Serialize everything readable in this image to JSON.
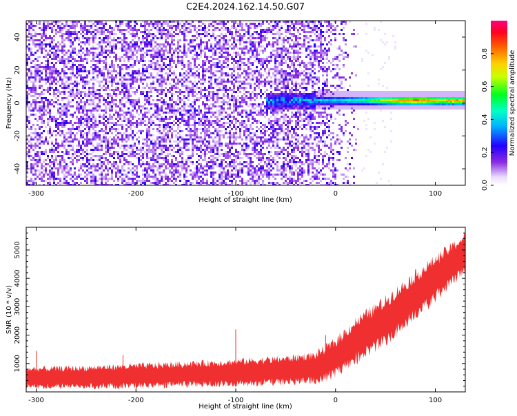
{
  "title": "C2E4.2024.162.14.50.G07",
  "colorbar": {
    "label": "Normalized spectral amplitude",
    "ticks": [
      "0.0",
      "0.2",
      "0.4",
      "0.6",
      "0.8"
    ],
    "tick_values": [
      0.0,
      0.2,
      0.4,
      0.6,
      0.8
    ],
    "range": [
      0,
      1
    ]
  },
  "chart_data": [
    {
      "type": "heatmap",
      "title": "",
      "xlabel": "Height of straight line (km)",
      "ylabel": "Frequency (Hz)",
      "xlim": [
        -310,
        130
      ],
      "ylim": [
        -50,
        50
      ],
      "xticks": [
        -300,
        -200,
        -100,
        0,
        100
      ],
      "xtick_labels": [
        "-300",
        "-200",
        "-100",
        "0",
        "100"
      ],
      "yticks": [
        -40,
        -20,
        0,
        20,
        40
      ],
      "ytick_labels": [
        "-40",
        "-20",
        "0",
        "20",
        "40"
      ],
      "colormap": "rainbow (purple-blue-cyan-green-yellow-orange-red-magenta)",
      "features": {
        "noise_floor_x_range": [
          -310,
          -20
        ],
        "noise_floor_amplitude": 0.15,
        "signal_line_frequency_hz": 1.5,
        "signal_line_x_range": [
          -70,
          130
        ],
        "signal_peak_x": 80,
        "signal_peak_amplitude": 0.85
      }
    },
    {
      "type": "line",
      "title": "",
      "xlabel": "Height of straight line (km)",
      "ylabel": "SNR (10 * v/v)",
      "xlim": [
        -310,
        130
      ],
      "ylim": [
        0,
        5800
      ],
      "xticks": [
        -300,
        -200,
        -100,
        0,
        100
      ],
      "xtick_labels": [
        "-300",
        "-200",
        "-100",
        "0",
        "100"
      ],
      "yticks": [
        1000,
        2000,
        3000,
        4000,
        5000
      ],
      "ytick_labels": [
        "1000",
        "2000",
        "3000",
        "4000",
        "5000"
      ],
      "color": "#f03030",
      "envelope": {
        "x": [
          -310,
          -250,
          -200,
          -150,
          -100,
          -50,
          -20,
          0,
          20,
          50,
          80,
          100,
          130
        ],
        "mean": [
          500,
          520,
          560,
          620,
          680,
          760,
          850,
          1200,
          1800,
          2500,
          3400,
          4000,
          4900
        ],
        "spread": [
          350,
          370,
          400,
          420,
          440,
          470,
          520,
          650,
          750,
          800,
          800,
          750,
          650
        ]
      },
      "spikes": [
        {
          "x": -300,
          "y": 1450
        },
        {
          "x": -213,
          "y": 1300
        },
        {
          "x": -100,
          "y": 2200
        },
        {
          "x": -10,
          "y": 2000
        }
      ]
    }
  ]
}
